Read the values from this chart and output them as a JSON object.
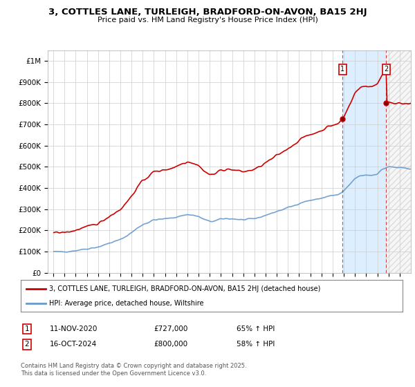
{
  "title": "3, COTTLES LANE, TURLEIGH, BRADFORD-ON-AVON, BA15 2HJ",
  "subtitle": "Price paid vs. HM Land Registry's House Price Index (HPI)",
  "legend_line1": "3, COTTLES LANE, TURLEIGH, BRADFORD-ON-AVON, BA15 2HJ (detached house)",
  "legend_line2": "HPI: Average price, detached house, Wiltshire",
  "annotation1_date": "11-NOV-2020",
  "annotation1_price": "£727,000",
  "annotation1_hpi": "65% ↑ HPI",
  "annotation2_date": "16-OCT-2024",
  "annotation2_price": "£800,000",
  "annotation2_hpi": "58% ↑ HPI",
  "footer": "Contains HM Land Registry data © Crown copyright and database right 2025.\nThis data is licensed under the Open Government Licence v3.0.",
  "red_color": "#cc0000",
  "blue_color": "#6699cc",
  "background_color": "#ffffff",
  "grid_color": "#cccccc",
  "shade_color": "#ddeeff",
  "hatch_color": "#cccccc",
  "marker1_x": 2020.875,
  "marker1_y": 727000,
  "marker2_x": 2024.792,
  "marker2_y": 800000,
  "ylim": [
    0,
    1050000
  ],
  "xlim_start": 1994.5,
  "xlim_end": 2027.0
}
